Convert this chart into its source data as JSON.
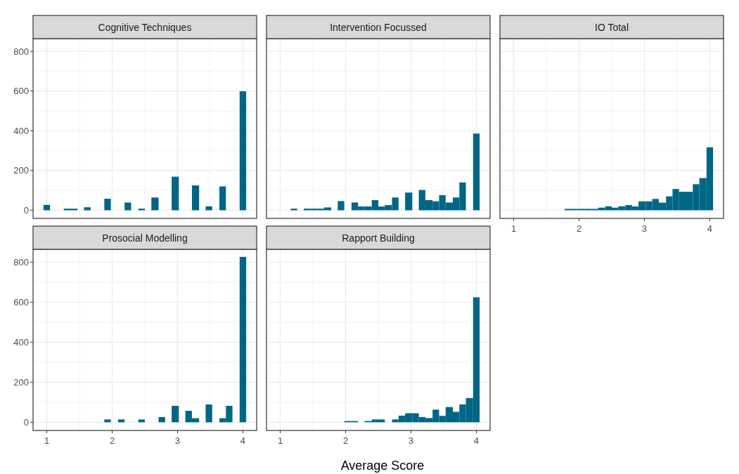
{
  "chart_data": [
    {
      "type": "histogram",
      "title": "Cognitive Techniques",
      "color": "#006685",
      "bins": [
        0.95,
        1.05,
        1.26,
        1.36,
        1.47,
        1.57,
        1.67,
        1.88,
        1.98,
        2.19,
        2.29,
        2.4,
        2.5,
        2.6,
        2.71,
        2.91,
        3.02,
        3.22,
        3.33,
        3.43,
        3.53,
        3.64,
        3.74,
        3.95,
        4.05
      ],
      "values": [
        27,
        0,
        8,
        8,
        0,
        15,
        0,
        58,
        0,
        39,
        0,
        8,
        0,
        64,
        0,
        169,
        0,
        125,
        0,
        20,
        0,
        120,
        0,
        599
      ],
      "xlim": [
        0.79,
        4.21
      ],
      "xticks": [
        1,
        2,
        3,
        4
      ],
      "ylim": [
        -41,
        864
      ],
      "yticks": [
        0,
        200,
        400,
        600,
        800
      ],
      "grid": true,
      "tick_labels": "y"
    },
    {
      "type": "histogram",
      "title": "Intervention Focussed",
      "color": "#006685",
      "bins": [
        1.16,
        1.26,
        1.36,
        1.47,
        1.57,
        1.67,
        1.78,
        1.88,
        1.98,
        2.09,
        2.19,
        2.29,
        2.4,
        2.5,
        2.6,
        2.71,
        2.81,
        2.91,
        3.02,
        3.12,
        3.22,
        3.33,
        3.43,
        3.53,
        3.64,
        3.74,
        3.84,
        3.95,
        4.05
      ],
      "values": [
        8,
        0,
        8,
        8,
        8,
        14,
        0,
        46,
        0,
        39,
        19,
        19,
        51,
        19,
        26,
        64,
        0,
        89,
        0,
        102,
        51,
        45,
        76,
        39,
        64,
        140,
        0,
        386
      ],
      "xlim": [
        0.79,
        4.21
      ],
      "xticks": [
        1,
        2,
        3,
        4
      ],
      "ylim": [
        -41,
        864
      ],
      "yticks": [
        0,
        200,
        400,
        600,
        800
      ],
      "grid": true,
      "tick_labels": false
    },
    {
      "type": "histogram",
      "title": "IO Total",
      "color": "#006685",
      "bins": [
        1.78,
        1.88,
        1.98,
        2.09,
        2.19,
        2.29,
        2.4,
        2.5,
        2.6,
        2.71,
        2.81,
        2.91,
        3.02,
        3.12,
        3.22,
        3.33,
        3.43,
        3.53,
        3.64,
        3.74,
        3.84,
        3.95,
        4.05
      ],
      "values": [
        7,
        7,
        7,
        7,
        7,
        13,
        20,
        13,
        20,
        26,
        19,
        45,
        45,
        57,
        38,
        70,
        107,
        93,
        93,
        131,
        162,
        317
      ],
      "xlim": [
        0.79,
        4.21
      ],
      "xticks": [
        1,
        2,
        3,
        4
      ],
      "ylim": [
        -41,
        864
      ],
      "yticks": [
        0,
        200,
        400,
        600,
        800
      ],
      "grid": true,
      "tick_labels": "x"
    },
    {
      "type": "histogram",
      "title": "Prosocial Modelling",
      "color": "#006685",
      "bins": [
        1.88,
        1.98,
        2.09,
        2.19,
        2.4,
        2.5,
        2.71,
        2.81,
        2.91,
        3.02,
        3.12,
        3.22,
        3.33,
        3.43,
        3.53,
        3.64,
        3.74,
        3.84,
        3.95,
        4.05
      ],
      "values": [
        14,
        0,
        14,
        0,
        14,
        0,
        26,
        0,
        82,
        0,
        57,
        20,
        0,
        89,
        0,
        20,
        82,
        0,
        826
      ],
      "xlim": [
        0.79,
        4.21
      ],
      "xticks": [
        1,
        2,
        3,
        4
      ],
      "ylim": [
        -41,
        864
      ],
      "yticks": [
        0,
        200,
        400,
        600,
        800
      ],
      "grid": true
    },
    {
      "type": "histogram",
      "title": "Rapport Building",
      "xlabel": "Average Score",
      "color": "#006685",
      "bins": [
        1.98,
        2.09,
        2.19,
        2.29,
        2.4,
        2.5,
        2.6,
        2.71,
        2.81,
        2.91,
        3.02,
        3.12,
        3.22,
        3.33,
        3.43,
        3.53,
        3.64,
        3.74,
        3.84,
        3.95,
        4.05
      ],
      "values": [
        6,
        6,
        0,
        6,
        14,
        14,
        0,
        14,
        33,
        45,
        45,
        26,
        21,
        63,
        32,
        76,
        52,
        89,
        121,
        624
      ],
      "xlim": [
        0.79,
        4.21
      ],
      "xticks": [
        1,
        2,
        3,
        4
      ],
      "ylim": [
        -41,
        864
      ],
      "yticks": [
        0,
        200,
        400,
        600,
        800
      ],
      "grid": true,
      "tick_labels": "x"
    }
  ]
}
